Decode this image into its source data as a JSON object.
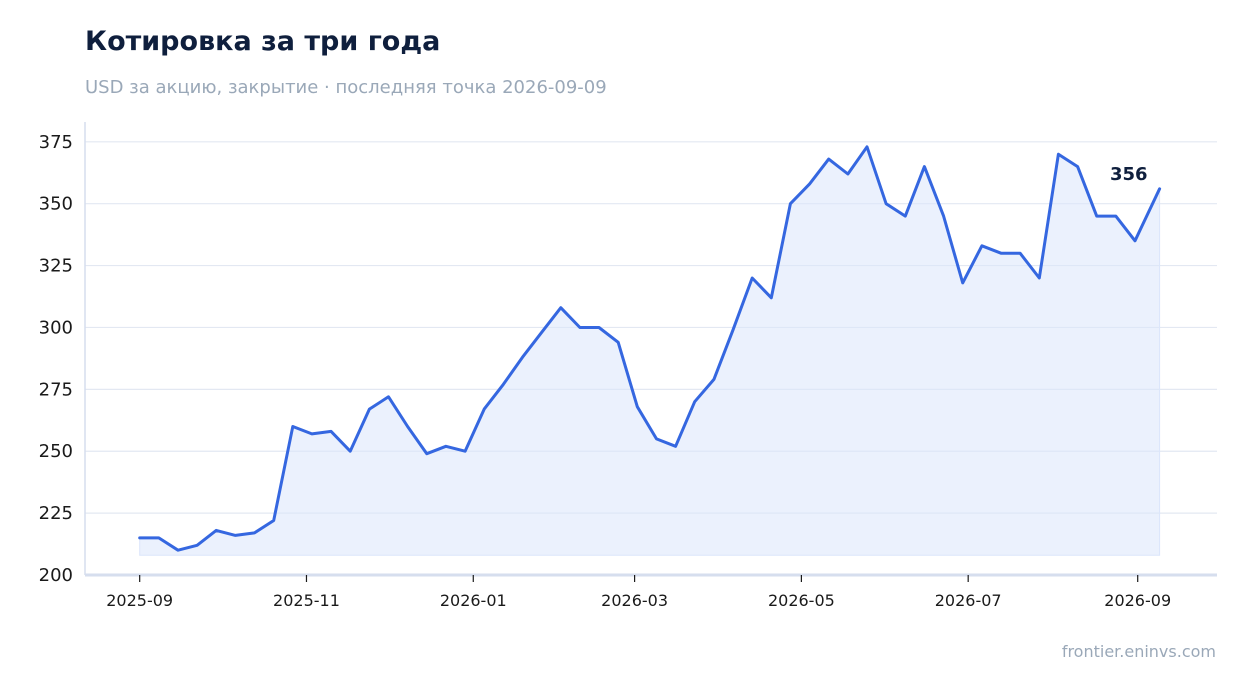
{
  "header": {
    "title": "Котировка за три года",
    "subtitle": "USD за акцию, закрытие · последняя точка 2026-09-09"
  },
  "footer": {
    "source": "frontier.eninvs.com"
  },
  "colors": {
    "line": "#3567e0",
    "area": "#dbe5fb",
    "grid": "#e3e8f2",
    "axis": "#d6deee"
  },
  "chart_data": {
    "type": "area",
    "title": "Котировка за три года",
    "subtitle": "USD за акцию, закрытие · последняя точка 2026-09-09",
    "xlabel": "",
    "ylabel": "",
    "ylim": [
      200,
      383
    ],
    "xlim": [
      "2025-08-12",
      "2026-09-30"
    ],
    "y_ticks": [
      200,
      225,
      250,
      275,
      300,
      325,
      350,
      375
    ],
    "x_ticks": [
      "2025-09",
      "2025-11",
      "2026-01",
      "2026-03",
      "2026-05",
      "2026-07",
      "2026-09"
    ],
    "grid": "horizontal",
    "last_value_label": "356",
    "series": [
      {
        "x": [
          "2025-09-01",
          "2025-09-08",
          "2025-09-15",
          "2025-09-22",
          "2025-09-29",
          "2025-10-06",
          "2025-10-13",
          "2025-10-20",
          "2025-10-27",
          "2025-11-03",
          "2025-11-10",
          "2025-11-17",
          "2025-11-24",
          "2025-12-01",
          "2025-12-08",
          "2025-12-15",
          "2025-12-22",
          "2025-12-29",
          "2026-01-05",
          "2026-01-12",
          "2026-01-19",
          "2026-01-26",
          "2026-02-02",
          "2026-02-09",
          "2026-02-16",
          "2026-02-23",
          "2026-03-02",
          "2026-03-09",
          "2026-03-16",
          "2026-03-23",
          "2026-03-30",
          "2026-04-06",
          "2026-04-13",
          "2026-04-20",
          "2026-04-27",
          "2026-05-04",
          "2026-05-11",
          "2026-05-18",
          "2026-05-25",
          "2026-06-01",
          "2026-06-08",
          "2026-06-15",
          "2026-06-22",
          "2026-06-29",
          "2026-07-06",
          "2026-07-13",
          "2026-07-20",
          "2026-07-27",
          "2026-08-03",
          "2026-08-10",
          "2026-08-17",
          "2026-08-24",
          "2026-08-31",
          "2026-09-09"
        ],
        "values": [
          215,
          215,
          210,
          212,
          218,
          216,
          217,
          222,
          260,
          257,
          258,
          250,
          267,
          272,
          260,
          249,
          252,
          250,
          267,
          277,
          288,
          298,
          308,
          300,
          300,
          294,
          268,
          255,
          252,
          270,
          279,
          299,
          320,
          312,
          350,
          358,
          368,
          362,
          373,
          350,
          345,
          365,
          345,
          318,
          333,
          330,
          330,
          320,
          370,
          365,
          345,
          345,
          335,
          356
        ]
      }
    ]
  }
}
